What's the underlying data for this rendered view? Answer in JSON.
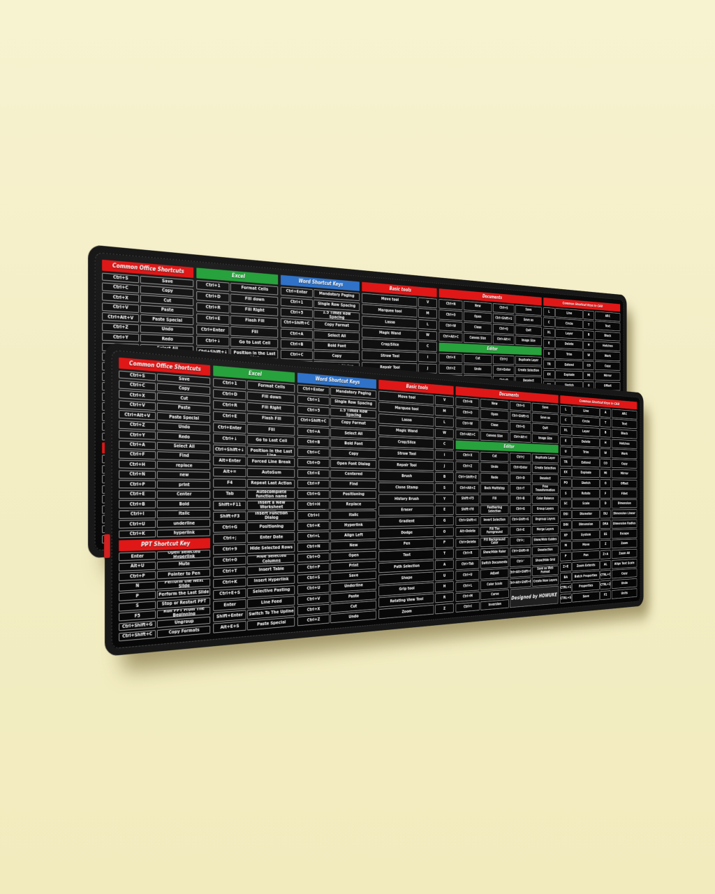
{
  "theme": {
    "background": "#f4eec6",
    "mat_black": "#0c0c0c",
    "header_red": "#e01717",
    "header_green": "#27a23c",
    "header_blue": "#2f72c8",
    "cell_line": "#a2a2a2",
    "text": "#ffffff",
    "red_tag": "#d32020"
  },
  "brand": {
    "designed_by": "Designed by HOWUKE"
  },
  "mat": {
    "sections": {
      "office": {
        "title": "Common Office Shortcuts",
        "color": "red",
        "rows": [
          [
            "Ctrl+S",
            "Save"
          ],
          [
            "Ctrl+C",
            "Copy"
          ],
          [
            "Ctrl+X",
            "Cut"
          ],
          [
            "Ctrl+V",
            "Paste"
          ],
          [
            "Ctrl+Alt+V",
            "Paste Special"
          ],
          [
            "Ctrl+Z",
            "Undo"
          ],
          [
            "Ctrl+Y",
            "Redo"
          ],
          [
            "Ctrl+A",
            "Select All"
          ],
          [
            "Ctrl+F",
            "Find"
          ],
          [
            "Ctrl+H",
            "replace"
          ],
          [
            "Ctrl+N",
            "new"
          ],
          [
            "Ctrl+P",
            "print"
          ],
          [
            "Ctrl+E",
            "Center"
          ],
          [
            "Ctrl+B",
            "Bold"
          ],
          [
            "Ctrl+I",
            "Italic"
          ],
          [
            "Ctrl+U",
            "underline"
          ],
          [
            "Ctrl+K",
            "hyperlink"
          ]
        ]
      },
      "ppt": {
        "title": "PPT Shortcut Key",
        "color": "red",
        "rows": [
          [
            "Enter",
            "Open Selected Hyperlink"
          ],
          [
            "Alt+U",
            "Mute"
          ],
          [
            "Ctrl+P",
            "Pointer to Pen"
          ],
          [
            "N",
            "Perform the Next Slide"
          ],
          [
            "P",
            "Perform the Last Slide"
          ],
          [
            "S",
            "Stop or Restart PPT"
          ],
          [
            "F5",
            "Run PPT From The Beginning"
          ],
          [
            "Ctrl+Shift+G",
            "Ungroup"
          ],
          [
            "Ctrl+Shift+C",
            "Copy Formats"
          ]
        ]
      },
      "excel": {
        "title": "Excel",
        "color": "green",
        "rows": [
          [
            "Ctrl+1",
            "Format Cells"
          ],
          [
            "Ctrl+D",
            "Fill down"
          ],
          [
            "Ctrl+R",
            "Fill Right"
          ],
          [
            "Ctrl+E",
            "Flash Fill"
          ],
          [
            "Ctrl+Enter",
            "Fill"
          ],
          [
            "Ctrl+↓",
            "Go to Last Cell"
          ],
          [
            "Ctrl+Shift+↓",
            "Check Current Position in the Last Line"
          ],
          [
            "Alt+Enter",
            "Forced Line Break"
          ],
          [
            "Alt+=",
            "AutoSum"
          ],
          [
            "F4",
            "Repeat Last Action"
          ],
          [
            "Tab",
            "Autocomplete function name"
          ],
          [
            "Shift+F11",
            "Insert a New Worksheet"
          ],
          [
            "Shift+F3",
            "Insert Function Dialog"
          ],
          [
            "Ctrl+G",
            "Positioning"
          ],
          [
            "Ctrl+;",
            "Enter Date"
          ],
          [
            "Ctrl+9",
            "Hide Selected Rows"
          ],
          [
            "Ctrl+0",
            "Hide Selected Columns"
          ],
          [
            "Ctrl+T",
            "Insert Table"
          ],
          [
            "Ctrl+K",
            "Insert Hyperlink"
          ],
          [
            "Ctrl+E+S",
            "Selective Pasting"
          ],
          [
            "Enter",
            "Line Feed"
          ],
          [
            "Shift+Enter",
            "Switch To The Upline"
          ],
          [
            "Alt+E+S",
            "Paste Special"
          ]
        ]
      },
      "word": {
        "title": "Word Shortcut Keys",
        "color": "blue",
        "rows": [
          [
            "Ctrl+Enter",
            "Mandatory Paging"
          ],
          [
            "Ctrl+1",
            "Single Row Spacing"
          ],
          [
            "Ctrl+5",
            "1.5 Times Row Spacing"
          ],
          [
            "Ctrl+Shift+C",
            "Copy Format"
          ],
          [
            "Ctrl+A",
            "Select All"
          ],
          [
            "Ctrl+B",
            "Bold Font"
          ],
          [
            "Ctrl+C",
            "Copy"
          ],
          [
            "Ctrl+D",
            "Open Font Dialog"
          ],
          [
            "Ctrl+E",
            "Centered"
          ],
          [
            "Ctrl+F",
            "Find"
          ],
          [
            "Ctrl+G",
            "Positioning"
          ],
          [
            "Ctrl+H",
            "Replace"
          ],
          [
            "Ctrl+I",
            "Italic"
          ],
          [
            "Ctrl+K",
            "Hyperlink"
          ],
          [
            "Ctrl+L",
            "Align Left"
          ],
          [
            "Ctrl+N",
            "New"
          ],
          [
            "Ctrl+O",
            "Open"
          ],
          [
            "Ctrl+P",
            "Print"
          ],
          [
            "Ctrl+S",
            "Save"
          ],
          [
            "Ctrl+U",
            "Underline"
          ],
          [
            "Ctrl+V",
            "Paste"
          ],
          [
            "Ctrl+X",
            "Cut"
          ],
          [
            "Ctrl+Z",
            "Undo"
          ]
        ]
      },
      "tools": {
        "title": "Basic tools",
        "color": "red",
        "rows": [
          [
            "Move tool",
            "V"
          ],
          [
            "Marquee tool",
            "M"
          ],
          [
            "Lasso",
            "L"
          ],
          [
            "Magic Wand",
            "W"
          ],
          [
            "Crop/Slice",
            "C"
          ],
          [
            "Straw Tool",
            "I"
          ],
          [
            "Repair Tool",
            "J"
          ],
          [
            "Brush",
            "B"
          ],
          [
            "Clone Stamp",
            "S"
          ],
          [
            "History Brush",
            "Y"
          ],
          [
            "Eraser",
            "E"
          ],
          [
            "Gradient",
            "G"
          ],
          [
            "Dodge",
            "O"
          ],
          [
            "Pen",
            "P"
          ],
          [
            "Text",
            "T"
          ],
          [
            "Path Selection",
            "A"
          ],
          [
            "Shape",
            "U"
          ],
          [
            "Grip tool",
            "H"
          ],
          [
            "Rotating View Tool",
            "R"
          ],
          [
            "Zoom",
            "Z"
          ]
        ]
      },
      "documents": {
        "title": "Documents",
        "color": "red",
        "rows": [
          [
            "Ctrl+N",
            "New",
            "Ctrl+S",
            "Save"
          ],
          [
            "Ctrl+O",
            "Open",
            "Ctrl+Shift+S",
            "Save as"
          ],
          [
            "Ctrl+W",
            "Close",
            "Ctrl+Q",
            "Quit"
          ],
          [
            "Ctrl+Alt+C",
            "Canvas Size",
            "Ctrl+Alt+I",
            "Image Size"
          ]
        ]
      },
      "editor": {
        "title": "Editor",
        "color": "green",
        "rows": [
          [
            "Ctrl+X",
            "Cut",
            "Ctrl+J",
            "Duplicate Layer"
          ],
          [
            "Ctrl+Z",
            "Undo",
            "Ctrl+Enter",
            "Create Selection"
          ],
          [
            "Ctrl+Shift+Z",
            "Redo",
            "Ctrl+D",
            "Deselect"
          ],
          [
            "Ctrl+Alt+Z",
            "Back Multistep",
            "Ctrl+T",
            "Free Transformation"
          ],
          [
            "Shift+F5",
            "Fill",
            "Ctrl+B",
            "Color Balance"
          ],
          [
            "Shift+F6",
            "Feathering Selection",
            "Ctrl+G",
            "Group Layers"
          ],
          [
            "Ctrl+Shift+I",
            "Invert Selection",
            "Ctrl+Shift+G",
            "Ungroup Layers"
          ],
          [
            "Alt+Delete",
            "Fill The Foreground",
            "Ctrl+E",
            "Merge Layers"
          ],
          [
            "Ctrl+Delete",
            "Fill Background Color",
            "Ctrl+;",
            "Show/Hide Guides"
          ],
          [
            "Ctrl+R",
            "Show/Hide Ruler",
            "Ctrl+Shift+H",
            "Deselection"
          ],
          [
            "Ctrl+Tab",
            "Switch Documents",
            "Ctrl+'",
            "Show/Hide Grid"
          ],
          [
            "Ctrl+U",
            "Adjust",
            "Ctrl+Alt+Shift+S",
            "Save as Web Format"
          ],
          [
            "Ctrl+L",
            "Color Scale",
            "Ctrl+Alt+Shift+N",
            "Create New Layers"
          ]
        ],
        "tail": [
          [
            "Ctrl+M",
            "Curve"
          ],
          [
            "Ctrl+I",
            "Inversion"
          ]
        ]
      },
      "cad": {
        "title": "Common Shortcut Keys in CAD",
        "color": "red",
        "rows": [
          [
            "L",
            "Line",
            "A",
            "ARC"
          ],
          [
            "C",
            "Circle",
            "T",
            "Text"
          ],
          [
            "XL",
            "Layer",
            "B",
            "Block"
          ],
          [
            "E",
            "Delete",
            "H",
            "Hatches"
          ],
          [
            "U",
            "Trim",
            "W",
            "Work"
          ],
          [
            "TR",
            "Extend",
            "CO",
            "Copy"
          ],
          [
            "EX",
            "Explode",
            "MI",
            "Mirror"
          ],
          [
            "PO",
            "Sketch",
            "O",
            "Offset"
          ],
          [
            "S",
            "Rotate",
            "F",
            "Fillet"
          ],
          [
            "SC",
            "Scale",
            "D",
            "Dimension"
          ],
          [
            "DSI",
            "Diameter",
            "DLI",
            "Dimension Linear"
          ],
          [
            "DIN",
            "Dimension",
            "DRA",
            "Dimension Radius"
          ],
          [
            "XP",
            "System",
            "ES",
            "Escape"
          ],
          [
            "M",
            "Move",
            "Z",
            "Zoom"
          ],
          [
            "P",
            "Pan",
            "Z+A",
            "Zoom All"
          ],
          [
            "Z+E",
            "Zoom Extents",
            "AL",
            "Align Text Scale"
          ],
          [
            "BA",
            "Batch Properties",
            "CTRL+C",
            "Copy"
          ],
          [
            "CTRL+1",
            "Properties",
            "CTRL+Z",
            "Undo"
          ],
          [
            "CTRL+S",
            "Save",
            "F2",
            "Units"
          ]
        ]
      }
    }
  }
}
